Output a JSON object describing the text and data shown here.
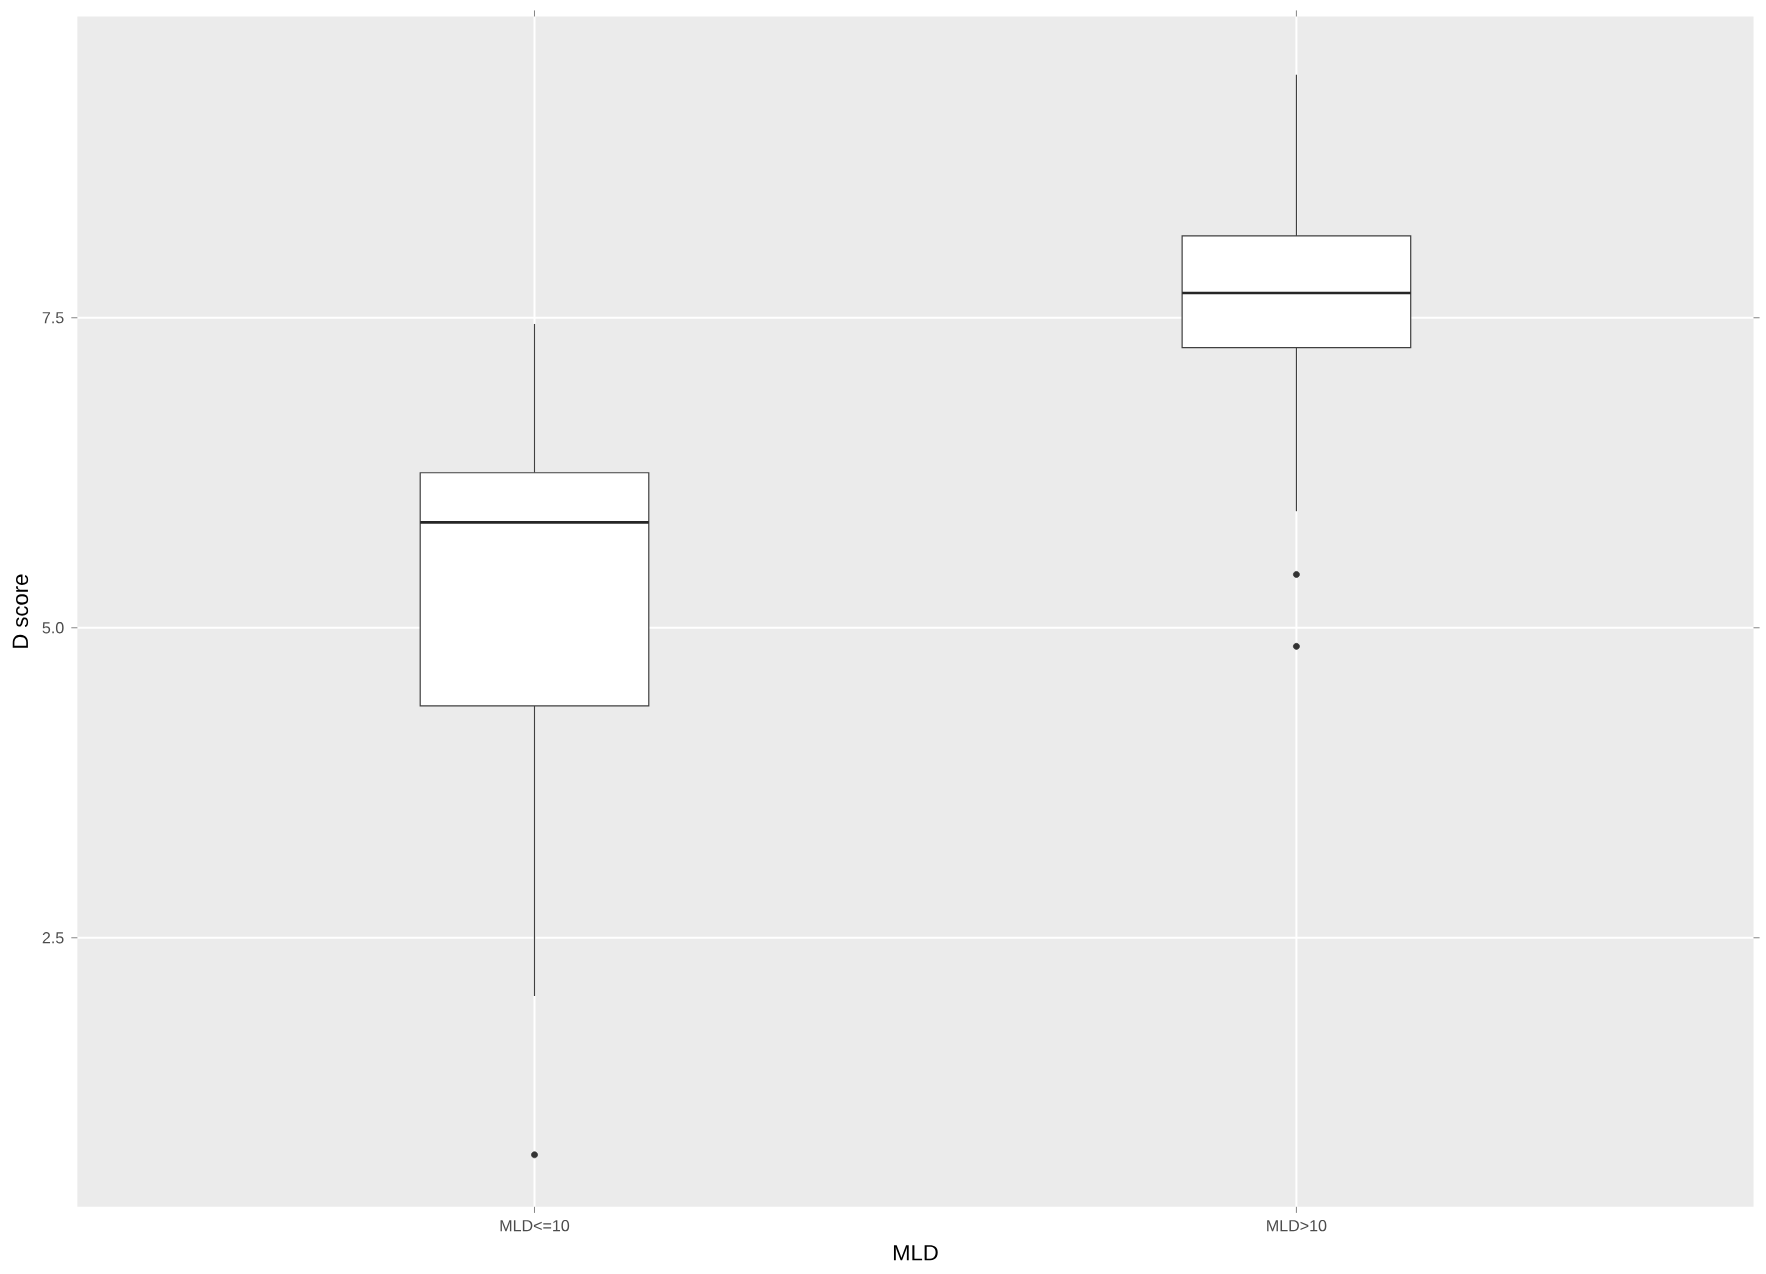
{
  "chart_data": {
    "type": "box",
    "xlabel": "MLD",
    "ylabel": "D score",
    "categories": [
      "MLD<=10",
      "MLD>10"
    ],
    "boxes": [
      {
        "low": 2.03,
        "q1": 4.37,
        "median": 5.85,
        "q3": 6.25,
        "high": 7.45,
        "outliers": [
          0.75
        ]
      },
      {
        "low": 5.94,
        "q1": 7.26,
        "median": 7.7,
        "q3": 8.16,
        "high": 9.46,
        "outliers": [
          5.43,
          4.85
        ]
      }
    ],
    "ylim": [
      0.33,
      9.93
    ],
    "yticks": [
      {
        "value": 2.5,
        "label": "2.5"
      },
      {
        "value": 5,
        "label": "5.0"
      },
      {
        "value": 7.5,
        "label": "7.5"
      }
    ],
    "grid": true
  }
}
